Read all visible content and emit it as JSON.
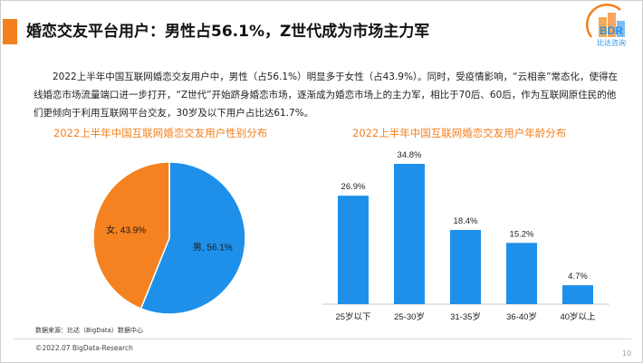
{
  "header": {
    "title": "婚恋交友平台用户：男性占56.1%，Z世代成为市场主力军",
    "accent_color": "#f2801e"
  },
  "logo": {
    "text": "BDR",
    "subtitle": "比达咨询",
    "color": "#2a93e6"
  },
  "intro_text": "2022上半年中国互联网婚恋交友用户中，男性（占56.1%）明显多于女性（占43.9%）。同时，受疫情影响，“云相亲”常态化，使得在线婚恋市场流量端口进一步打开，“Z世代”开始跻身婚恋市场，逐渐成为婚恋市场上的主力军，相比于70后、60后，作为互联网原住民的他们更倾向于利用互联网平台交友，30岁及以下用户占比达61.7%。",
  "chart_data": [
    {
      "type": "pie",
      "title": "2022上半年中国互联网婚恋交友用户性别分布",
      "slices": [
        {
          "label": "男",
          "value": 56.1,
          "display": "男, 56.1%",
          "color": "#1e90ea"
        },
        {
          "label": "女",
          "value": 43.9,
          "display": "女, 43.9%",
          "color": "#f58220"
        }
      ]
    },
    {
      "type": "bar",
      "title": "2022上半年中国互联网婚恋交友用户年龄分布",
      "categories": [
        "25岁以下",
        "25-30岁",
        "31-35岁",
        "36-40岁",
        "40岁以上"
      ],
      "values": [
        26.9,
        34.8,
        18.4,
        15.2,
        4.7
      ],
      "value_labels": [
        "26.9%",
        "34.8%",
        "18.4%",
        "15.2%",
        "4.7%"
      ],
      "ylim": [
        0,
        34.8
      ],
      "color": "#1e90ea",
      "grid": false
    }
  ],
  "footer": {
    "source": "数据来源：比达（BigData）数据中心",
    "copyright": "©2022.07 BigData-Research",
    "page_number": "10"
  }
}
